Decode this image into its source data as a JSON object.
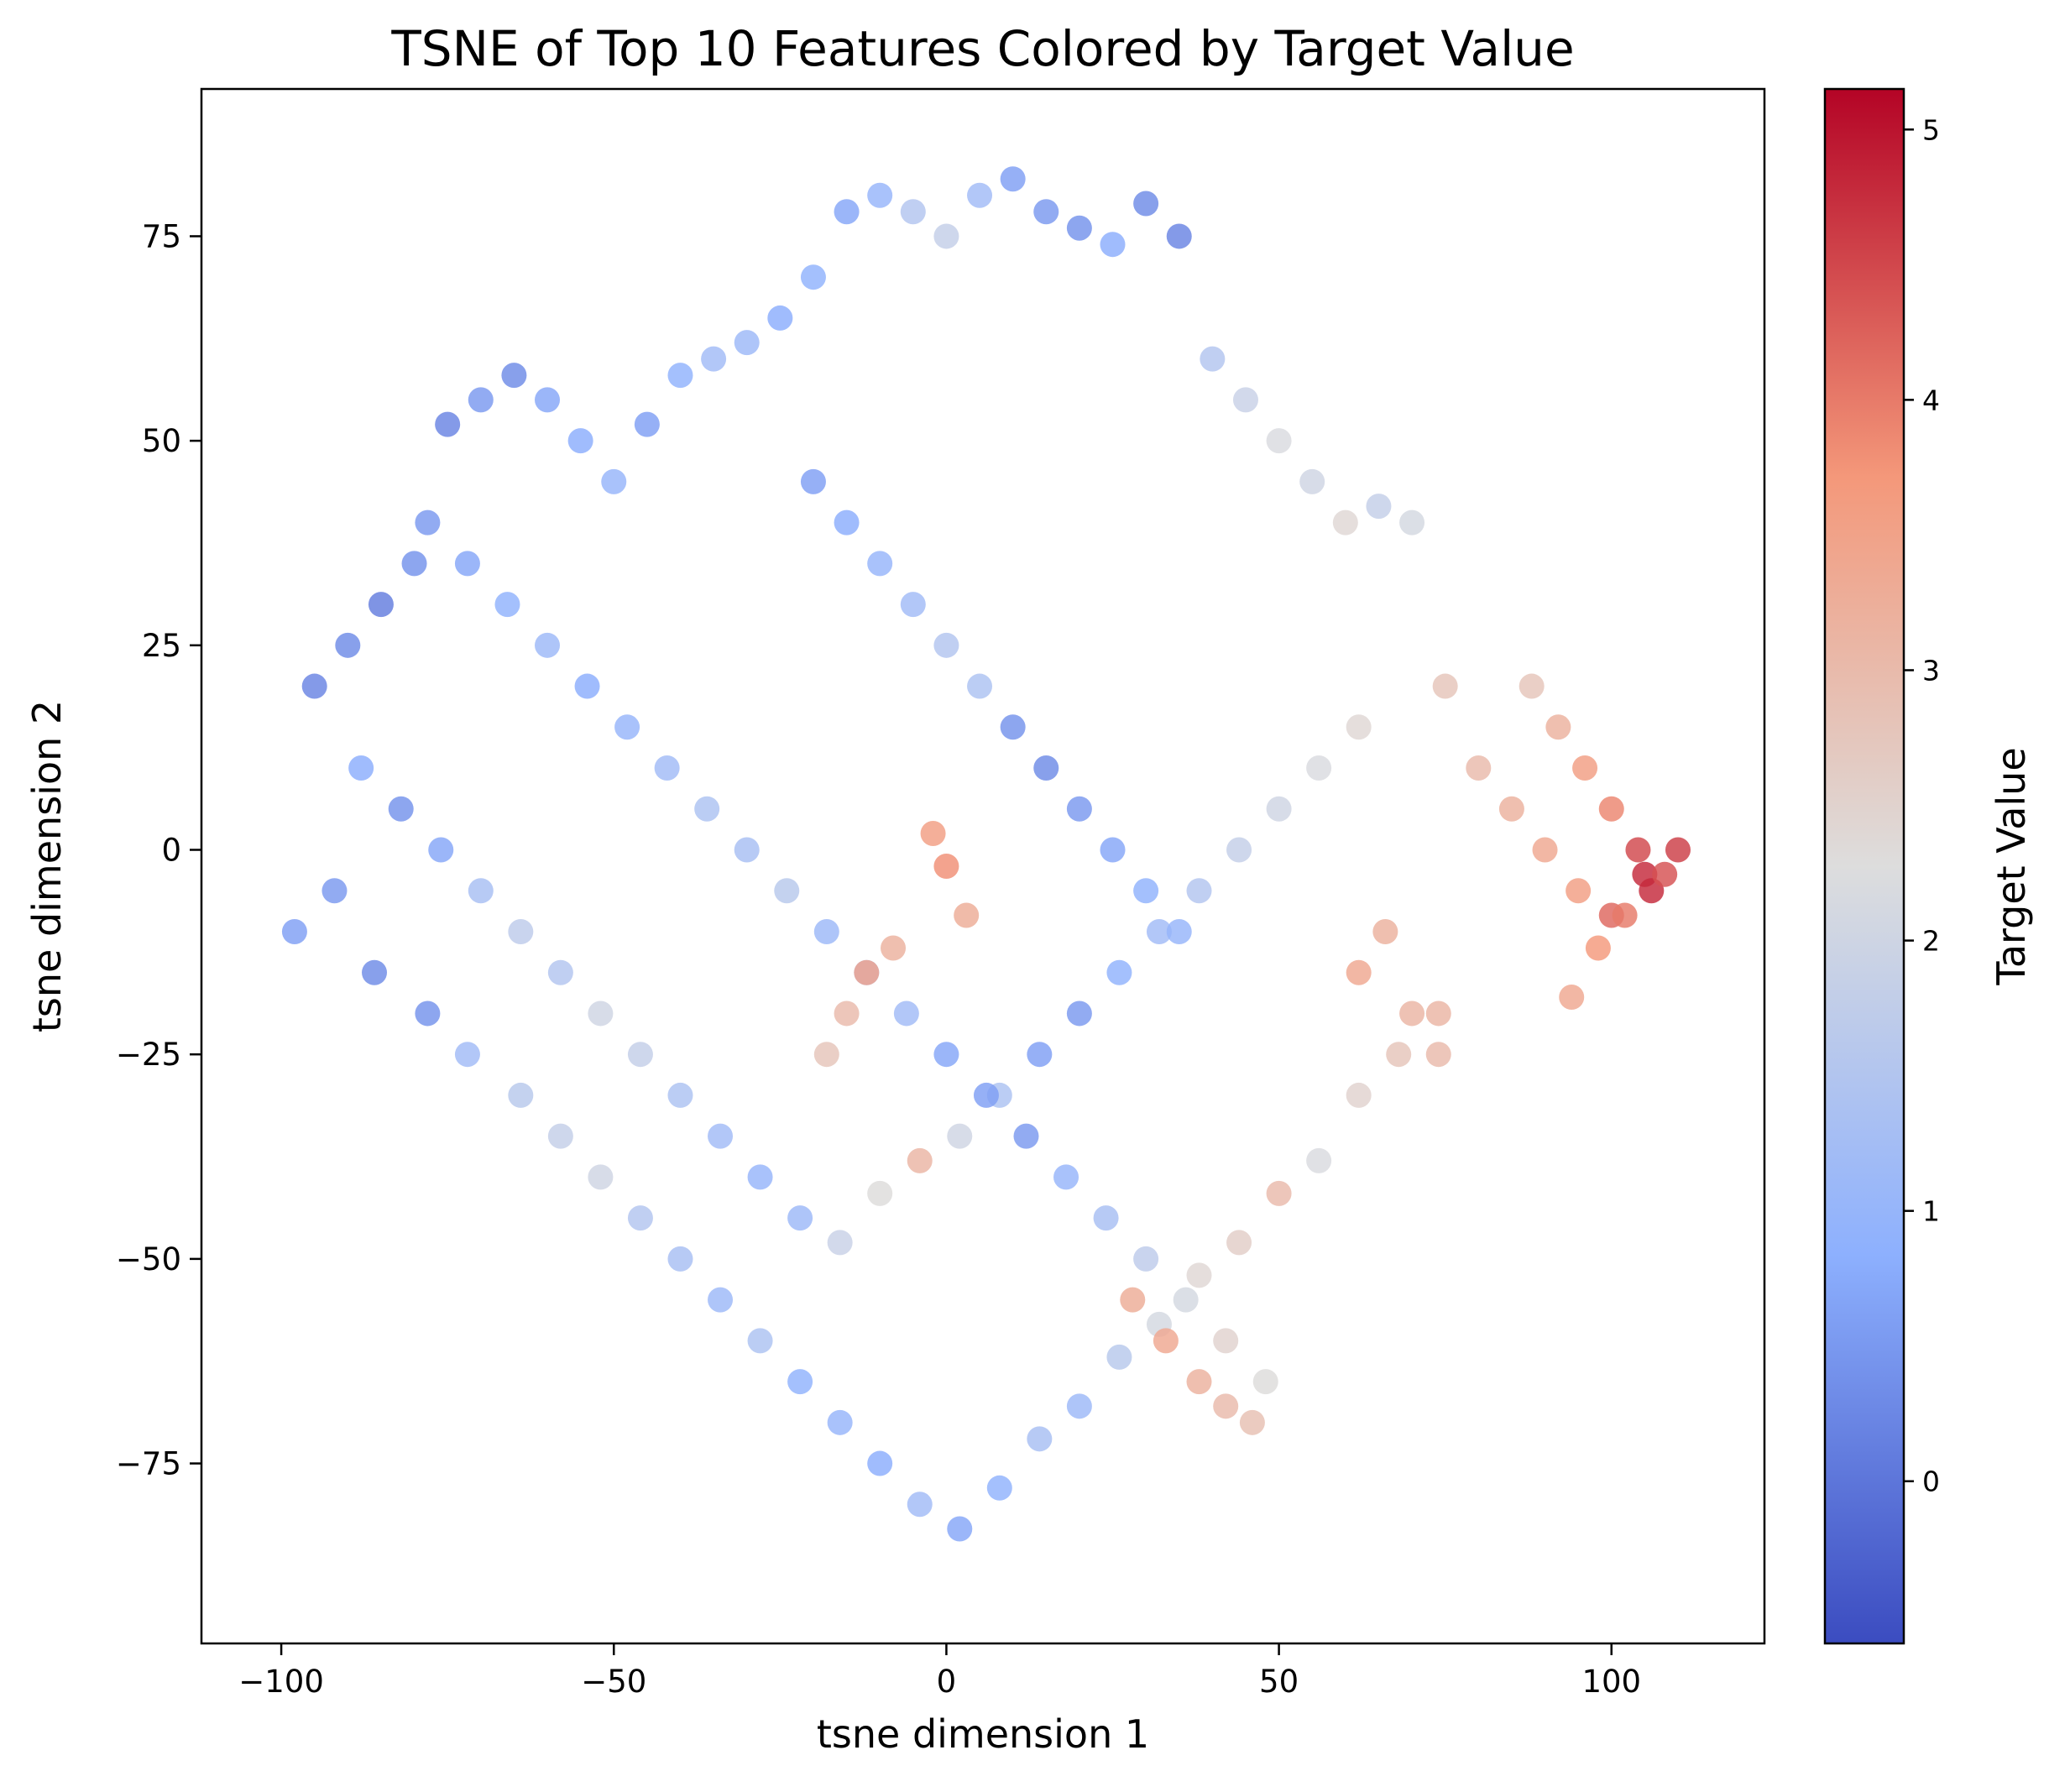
{
  "chart_data": {
    "type": "scatter",
    "title": "TSNE of Top 10 Features Colored by Target Value",
    "xlabel": "tsne dimension 1",
    "ylabel": "tsne dimension 2",
    "xlim": [
      -112,
      123
    ],
    "ylim": [
      -97,
      93
    ],
    "xticks": [
      -100,
      -50,
      0,
      50,
      100
    ],
    "yticks": [
      -75,
      -50,
      -25,
      0,
      25,
      50,
      75
    ],
    "grid": false,
    "colormap": "coolwarm",
    "colorbar": {
      "label": "Target Value",
      "range": [
        -0.6,
        5.15
      ],
      "ticks": [
        0,
        1,
        2,
        3,
        4,
        5
      ]
    },
    "colors": {
      "low": "#3b4cc0",
      "mid": "#dddddd",
      "high": "#b40426"
    },
    "series": [
      {
        "x": [
          -95,
          -90,
          -85,
          -80,
          -75,
          -70,
          -65,
          -60,
          -55,
          -50,
          -45,
          -40,
          -35,
          -30,
          -25,
          -20,
          -15,
          -10,
          -5,
          0,
          5,
          10,
          15,
          20,
          25,
          30,
          35,
          40,
          45,
          50,
          55,
          60,
          65,
          70,
          75,
          80,
          85,
          90,
          95,
          100,
          105,
          110,
          -98,
          -92,
          -86,
          -78,
          -72,
          -64,
          -58,
          -52,
          -46,
          -40,
          -34,
          -28,
          -22,
          -16,
          -10,
          -4,
          2,
          8,
          14,
          20,
          26,
          32,
          38,
          44,
          50,
          56,
          62,
          68,
          74,
          -88,
          -82,
          -76,
          -70,
          -64,
          -58,
          -52,
          -46,
          -40,
          -34,
          -28,
          -22,
          -16,
          -10,
          -4,
          2,
          8,
          14,
          20,
          26,
          32,
          38,
          44,
          50,
          56,
          62,
          -78,
          -72,
          -66,
          -60,
          -54,
          -48,
          -42,
          -36,
          -30,
          -24,
          -18,
          -12,
          -6,
          0,
          6,
          12,
          18,
          24,
          30,
          36,
          42,
          48,
          -20,
          -15,
          -10,
          -5,
          0,
          5,
          10,
          15,
          20,
          25,
          30,
          35,
          -2,
          0,
          3,
          -8,
          -12,
          -15,
          -18,
          62,
          66,
          70,
          74,
          28,
          33,
          38,
          42,
          46,
          88,
          92,
          96,
          100,
          104,
          106,
          108,
          102,
          98,
          94
        ],
        "y": [
          20,
          25,
          30,
          35,
          52,
          55,
          58,
          55,
          50,
          45,
          52,
          58,
          60,
          62,
          65,
          70,
          78,
          80,
          78,
          75,
          80,
          82,
          78,
          76,
          74,
          79,
          75,
          60,
          55,
          50,
          45,
          40,
          42,
          40,
          20,
          10,
          5,
          0,
          -5,
          -8,
          -3,
          0,
          -10,
          -5,
          -15,
          -20,
          -25,
          -30,
          -35,
          -40,
          -45,
          -50,
          -55,
          -60,
          -65,
          -70,
          -75,
          -80,
          -83,
          -78,
          -72,
          -68,
          -62,
          -58,
          -52,
          -48,
          -42,
          -38,
          -30,
          -25,
          -20,
          10,
          5,
          0,
          -5,
          -10,
          -15,
          -20,
          -25,
          -30,
          -35,
          -40,
          -45,
          -48,
          -42,
          -38,
          -35,
          -30,
          -25,
          -20,
          -15,
          -10,
          -5,
          0,
          5,
          10,
          15,
          40,
          35,
          30,
          25,
          20,
          15,
          10,
          5,
          0,
          -5,
          -10,
          -15,
          -20,
          -25,
          -30,
          -35,
          -40,
          -45,
          -50,
          -55,
          -60,
          -65,
          45,
          40,
          35,
          30,
          25,
          20,
          15,
          10,
          5,
          0,
          -5,
          -10,
          2,
          -2,
          -8,
          -12,
          -15,
          -20,
          -25,
          -15,
          -10,
          -20,
          -25,
          -55,
          -60,
          -65,
          -68,
          -70,
          20,
          15,
          10,
          5,
          0,
          -5,
          -3,
          -8,
          -12,
          -18
        ],
        "values": [
          0.2,
          0.3,
          0.1,
          0.4,
          0.2,
          0.5,
          0.3,
          0.7,
          0.8,
          1.0,
          0.6,
          0.9,
          1.2,
          1.1,
          0.8,
          0.9,
          0.7,
          1.0,
          1.5,
          1.8,
          1.2,
          0.6,
          0.5,
          0.4,
          0.8,
          0.3,
          0.2,
          1.5,
          1.9,
          2.2,
          2.0,
          2.4,
          1.8,
          2.1,
          2.8,
          3.0,
          3.2,
          3.4,
          3.6,
          4.2,
          4.8,
          4.6,
          0.6,
          0.5,
          0.3,
          0.4,
          1.2,
          1.6,
          1.8,
          2.0,
          1.5,
          1.3,
          1.1,
          1.4,
          0.9,
          1.0,
          0.8,
          1.2,
          0.7,
          0.9,
          1.3,
          1.1,
          1.6,
          2.1,
          2.4,
          2.6,
          3.0,
          2.2,
          2.5,
          2.8,
          3.1,
          0.8,
          0.4,
          0.7,
          1.3,
          1.7,
          1.5,
          2.0,
          1.8,
          1.4,
          1.2,
          1.0,
          1.1,
          1.9,
          2.3,
          3.1,
          2.0,
          1.4,
          0.6,
          0.5,
          0.9,
          1.2,
          1.5,
          1.8,
          2.0,
          2.2,
          2.4,
          0.5,
          0.7,
          0.9,
          1.1,
          0.8,
          1.0,
          1.2,
          1.4,
          1.3,
          1.6,
          1.1,
          0.9,
          1.2,
          0.7,
          0.6,
          0.5,
          1.0,
          1.3,
          1.7,
          2.1,
          2.5,
          2.3,
          0.6,
          0.8,
          1.0,
          1.2,
          1.5,
          1.4,
          0.4,
          0.3,
          0.5,
          0.7,
          0.9,
          1.0,
          3.6,
          3.8,
          3.3,
          3.2,
          3.5,
          3.0,
          2.8,
          3.4,
          3.2,
          3.1,
          3.0,
          3.3,
          3.4,
          3.2,
          3.0,
          2.9,
          2.8,
          3.2,
          3.6,
          3.9,
          4.5,
          4.8,
          4.4,
          4.0,
          3.7,
          3.4
        ]
      }
    ]
  }
}
